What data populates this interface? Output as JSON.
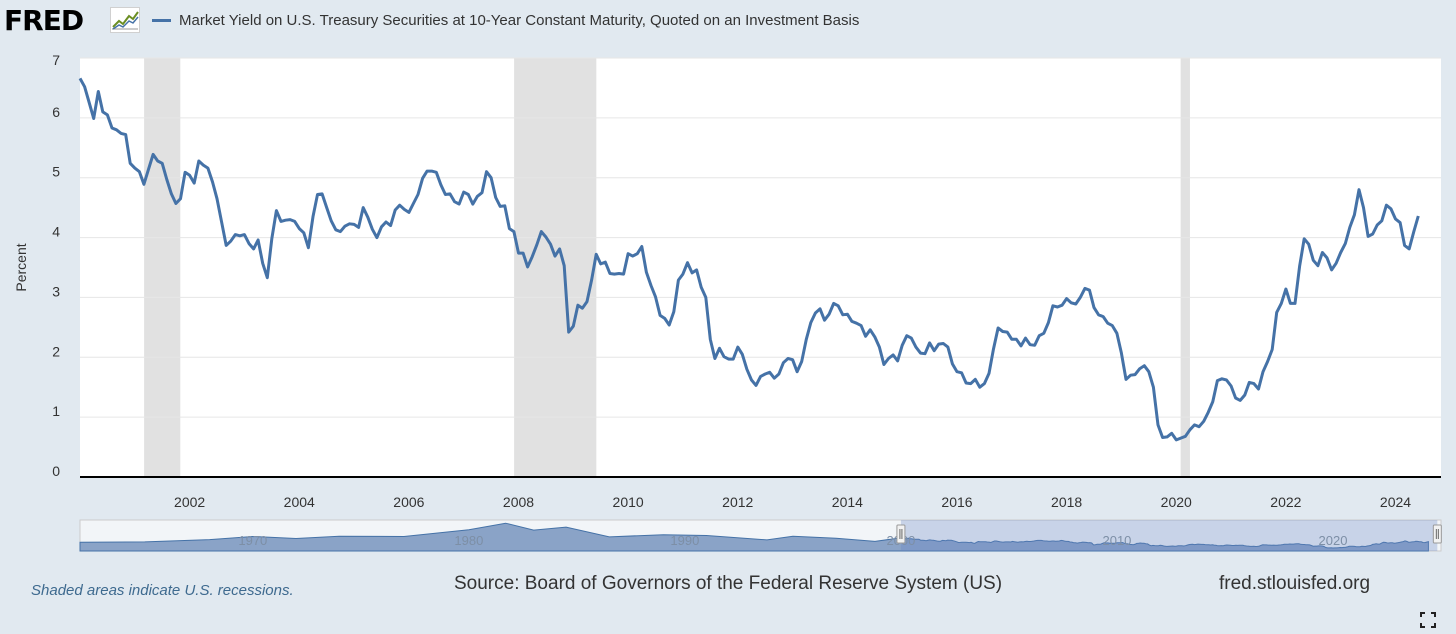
{
  "header": {
    "logo_text": "FRED",
    "logo_icon": "fred-trend-chart-icon"
  },
  "footer": {
    "recession_note": "Shaded areas indicate U.S. recessions.",
    "source": "Source: Board of Governors of the Federal Reserve System (US)",
    "url": "fred.stlouisfed.org",
    "fullscreen_icon": "fullscreen-icon"
  },
  "chart_data": {
    "type": "line",
    "title": "",
    "xlabel": "",
    "ylabel": "Percent",
    "xlim": [
      2000.0,
      2024.83
    ],
    "ylim": [
      0,
      7
    ],
    "y_ticks": [
      0,
      1,
      2,
      3,
      4,
      5,
      6,
      7
    ],
    "x_ticks": [
      2002,
      2004,
      2006,
      2008,
      2010,
      2012,
      2014,
      2016,
      2018,
      2020,
      2022,
      2024
    ],
    "grid": true,
    "legend_position": "top-left",
    "series": [
      {
        "name": "Market Yield on U.S. Treasury Securities at 10-Year Constant Maturity, Quoted on an Investment Basis",
        "color": "#4572a7",
        "frequency": "monthly",
        "start": 2000.0,
        "values": [
          6.66,
          6.52,
          6.26,
          5.99,
          6.44,
          6.1,
          6.05,
          5.83,
          5.8,
          5.74,
          5.72,
          5.24,
          5.16,
          5.1,
          4.89,
          5.14,
          5.39,
          5.28,
          5.24,
          4.97,
          4.73,
          4.57,
          4.65,
          5.09,
          5.04,
          4.91,
          5.28,
          5.21,
          5.16,
          4.93,
          4.65,
          4.26,
          3.87,
          3.94,
          4.05,
          4.03,
          4.05,
          3.9,
          3.81,
          3.96,
          3.57,
          3.33,
          3.98,
          4.45,
          4.27,
          4.29,
          4.3,
          4.27,
          4.15,
          4.08,
          3.83,
          4.35,
          4.72,
          4.73,
          4.5,
          4.28,
          4.13,
          4.1,
          4.19,
          4.23,
          4.22,
          4.17,
          4.5,
          4.34,
          4.14,
          4.0,
          4.18,
          4.26,
          4.2,
          4.46,
          4.54,
          4.47,
          4.42,
          4.57,
          4.72,
          4.99,
          5.11,
          5.11,
          5.09,
          4.88,
          4.72,
          4.73,
          4.6,
          4.56,
          4.76,
          4.72,
          4.56,
          4.69,
          4.75,
          5.1,
          5.0,
          4.67,
          4.52,
          4.53,
          4.15,
          4.1,
          3.74,
          3.74,
          3.51,
          3.68,
          3.88,
          4.1,
          4.01,
          3.89,
          3.69,
          3.81,
          3.53,
          2.42,
          2.52,
          2.87,
          2.82,
          2.93,
          3.29,
          3.72,
          3.56,
          3.59,
          3.4,
          3.39,
          3.4,
          3.39,
          3.73,
          3.69,
          3.73,
          3.85,
          3.42,
          3.2,
          3.01,
          2.7,
          2.65,
          2.54,
          2.76,
          3.29,
          3.39,
          3.58,
          3.41,
          3.46,
          3.17,
          3.0,
          2.3,
          1.98,
          2.15,
          2.01,
          1.97,
          1.97,
          2.17,
          2.05,
          1.8,
          1.62,
          1.53,
          1.68,
          1.72,
          1.75,
          1.65,
          1.72,
          1.91,
          1.98,
          1.96,
          1.76,
          1.93,
          2.3,
          2.58,
          2.74,
          2.81,
          2.62,
          2.72,
          2.9,
          2.86,
          2.71,
          2.72,
          2.6,
          2.57,
          2.53,
          2.35,
          2.46,
          2.34,
          2.17,
          1.88,
          1.98,
          2.04,
          1.94,
          2.2,
          2.36,
          2.32,
          2.17,
          2.07,
          2.06,
          2.24,
          2.11,
          2.22,
          2.23,
          2.17,
          1.89,
          1.76,
          1.74,
          1.57,
          1.56,
          1.63,
          1.5,
          1.56,
          1.73,
          2.14,
          2.49,
          2.43,
          2.42,
          2.3,
          2.3,
          2.19,
          2.32,
          2.21,
          2.2,
          2.36,
          2.4,
          2.58,
          2.86,
          2.84,
          2.87,
          2.98,
          2.91,
          2.89,
          3.0,
          3.15,
          3.12,
          2.83,
          2.71,
          2.68,
          2.57,
          2.53,
          2.4,
          2.07,
          1.63,
          1.7,
          1.71,
          1.81,
          1.86,
          1.76,
          1.5,
          0.87,
          0.66,
          0.67,
          0.73,
          0.62,
          0.65,
          0.68,
          0.79,
          0.87,
          0.84,
          0.93,
          1.08,
          1.26,
          1.61,
          1.64,
          1.62,
          1.52,
          1.32,
          1.28,
          1.37,
          1.58,
          1.56,
          1.47,
          1.76,
          1.93,
          2.13,
          2.75,
          2.9,
          3.14,
          2.9,
          2.9,
          3.52,
          3.98,
          3.89,
          3.62,
          3.53,
          3.75,
          3.66,
          3.46,
          3.57,
          3.75,
          3.9,
          4.17,
          4.38,
          4.8,
          4.5,
          4.02,
          4.06,
          4.21,
          4.28,
          4.54,
          4.48,
          4.31,
          4.25,
          3.87,
          3.81,
          4.1,
          4.36
        ]
      }
    ],
    "recessions": [
      [
        2001.17,
        2001.83
      ],
      [
        2007.92,
        2009.42
      ],
      [
        2020.08,
        2020.25
      ]
    ],
    "navigator": {
      "x_ticks": [
        1970,
        1980,
        1990,
        2000,
        2010,
        2020
      ],
      "full_range": [
        1962.0,
        2025.0
      ],
      "selected_range": [
        2000.0,
        2024.83
      ]
    }
  }
}
